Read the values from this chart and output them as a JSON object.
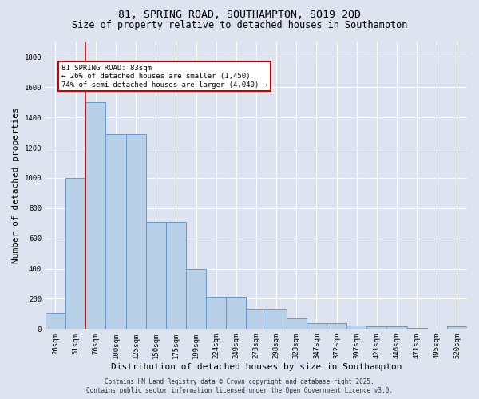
{
  "title_line1": "81, SPRING ROAD, SOUTHAMPTON, SO19 2QD",
  "title_line2": "Size of property relative to detached houses in Southampton",
  "xlabel": "Distribution of detached houses by size in Southampton",
  "ylabel": "Number of detached properties",
  "categories": [
    "26sqm",
    "51sqm",
    "76sqm",
    "100sqm",
    "125sqm",
    "150sqm",
    "175sqm",
    "199sqm",
    "224sqm",
    "249sqm",
    "273sqm",
    "298sqm",
    "323sqm",
    "347sqm",
    "372sqm",
    "397sqm",
    "421sqm",
    "446sqm",
    "471sqm",
    "495sqm",
    "520sqm"
  ],
  "bar_values": [
    110,
    1000,
    1500,
    1290,
    1290,
    710,
    710,
    400,
    215,
    215,
    135,
    135,
    70,
    40,
    40,
    25,
    15,
    15,
    5,
    0,
    15
  ],
  "bar_color": "#b8cfe8",
  "bar_edge_color": "#6699cc",
  "bg_color": "#dde4f0",
  "grid_color": "#ffffff",
  "ylim": [
    0,
    1900
  ],
  "yticks": [
    0,
    200,
    400,
    600,
    800,
    1000,
    1200,
    1400,
    1600,
    1800
  ],
  "annotation_text": "81 SPRING ROAD: 83sqm\n← 26% of detached houses are smaller (1,450)\n74% of semi-detached houses are larger (4,040) →",
  "annotation_box_color": "#ffffff",
  "annotation_border_color": "#cc0000",
  "vline_x": 1.5,
  "vline_color": "#cc0000",
  "footer_line1": "Contains HM Land Registry data © Crown copyright and database right 2025.",
  "footer_line2": "Contains public sector information licensed under the Open Government Licence v3.0.",
  "title_fontsize": 9.5,
  "subtitle_fontsize": 8.5,
  "tick_fontsize": 6.5,
  "xlabel_fontsize": 8,
  "ylabel_fontsize": 8,
  "footer_fontsize": 5.5
}
